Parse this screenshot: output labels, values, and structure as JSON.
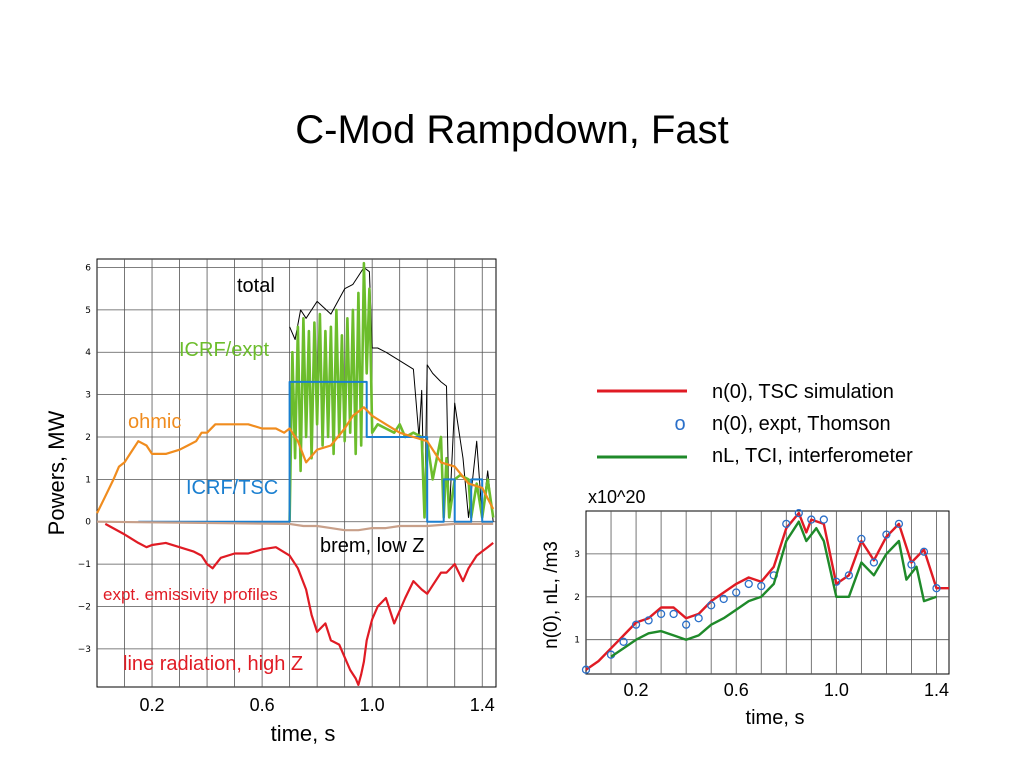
{
  "slide": {
    "title": "C-Mod Rampdown, Fast"
  },
  "colors": {
    "total": "#000000",
    "icrf_expt": "#6cbd2c",
    "ohmic": "#f08c1e",
    "icrf_tsc": "#1a7fd0",
    "brem": "#c8a08a",
    "line": "#e01b24",
    "tsc_sim": "#e01b24",
    "thomson": "#2a6fc9",
    "interferometer": "#1f8a2a"
  },
  "chart_data": [
    {
      "type": "line",
      "xlabel": "time, s",
      "ylabel": "Powers, MW",
      "xlim": [
        0.0,
        1.45
      ],
      "ylim": [
        -3.9,
        6.2
      ],
      "x_ticks": [
        {
          "v": 0.2,
          "label": "0.2"
        },
        {
          "v": 0.6,
          "label": "0.6"
        },
        {
          "v": 1.0,
          "label": "1.0"
        },
        {
          "v": 1.4,
          "label": "1.4"
        }
      ],
      "y_ticks": [
        {
          "v": 6,
          "label": "6"
        },
        {
          "v": 5,
          "label": "5"
        },
        {
          "v": 4,
          "label": "4"
        },
        {
          "v": 3,
          "label": "3"
        },
        {
          "v": 2,
          "label": "2"
        },
        {
          "v": 1,
          "label": "1"
        },
        {
          "v": 0,
          "label": "0"
        },
        {
          "v": -1,
          "label": "−1"
        },
        {
          "v": -2,
          "label": "−2"
        },
        {
          "v": -3,
          "label": "−3"
        }
      ],
      "grid": true,
      "series": [
        {
          "key": "total",
          "color": "#000000",
          "x": [
            0.7,
            0.72,
            0.74,
            0.76,
            0.8,
            0.85,
            0.9,
            0.93,
            0.95,
            0.97,
            0.99,
            1.0,
            1.02,
            1.05,
            1.1,
            1.15,
            1.17,
            1.18,
            1.19,
            1.2,
            1.22,
            1.25,
            1.27,
            1.28,
            1.3,
            1.33,
            1.35,
            1.38,
            1.4,
            1.42,
            1.44
          ],
          "y": [
            4.6,
            4.3,
            5.0,
            4.8,
            5.2,
            4.9,
            5.5,
            5.6,
            5.8,
            6.0,
            5.9,
            4.1,
            4.1,
            4.0,
            3.8,
            3.6,
            2.0,
            3.1,
            0.1,
            3.7,
            3.5,
            3.3,
            3.2,
            0.1,
            2.8,
            1.5,
            0.1,
            1.9,
            0.1,
            1.2,
            0.0
          ]
        },
        {
          "key": "icrf_expt",
          "color": "#6cbd2c",
          "x": [
            0.7,
            0.71,
            0.72,
            0.73,
            0.74,
            0.75,
            0.76,
            0.77,
            0.78,
            0.79,
            0.8,
            0.81,
            0.82,
            0.83,
            0.84,
            0.85,
            0.86,
            0.87,
            0.88,
            0.89,
            0.9,
            0.91,
            0.92,
            0.93,
            0.94,
            0.95,
            0.96,
            0.97,
            0.98,
            0.99,
            1.0,
            1.02,
            1.05,
            1.08,
            1.1,
            1.12,
            1.15,
            1.18,
            1.19,
            1.2,
            1.22,
            1.25,
            1.26,
            1.27,
            1.28,
            1.3,
            1.32,
            1.35,
            1.36,
            1.38,
            1.4,
            1.42,
            1.44
          ],
          "y": [
            0.0,
            4.0,
            1.5,
            4.6,
            1.2,
            4.8,
            2.0,
            4.5,
            1.5,
            4.7,
            2.3,
            4.9,
            1.8,
            4.5,
            2.0,
            4.6,
            1.6,
            5.0,
            2.0,
            4.4,
            1.9,
            4.8,
            2.1,
            5.0,
            1.6,
            5.4,
            1.8,
            6.1,
            3.5,
            5.5,
            2.1,
            2.3,
            2.2,
            2.1,
            2.3,
            2.0,
            2.1,
            2.0,
            0.1,
            1.9,
            1.0,
            2.0,
            0.1,
            1.5,
            0.1,
            1.0,
            1.1,
            1.0,
            0.1,
            0.9,
            0.1,
            1.0,
            0.1
          ]
        },
        {
          "key": "icrf_tsc",
          "color": "#1a7fd0",
          "x": [
            0.15,
            0.7,
            0.7,
            0.98,
            0.98,
            1.2,
            1.2,
            1.26,
            1.26,
            1.3,
            1.3,
            1.36,
            1.36,
            1.4,
            1.4,
            1.44
          ],
          "y": [
            0.0,
            0.0,
            3.3,
            3.3,
            2.0,
            2.0,
            0.0,
            0.0,
            1.0,
            1.0,
            0.0,
            0.0,
            1.0,
            1.0,
            0.0,
            0.0
          ]
        },
        {
          "key": "ohmic",
          "color": "#f08c1e",
          "x": [
            0.0,
            0.03,
            0.06,
            0.08,
            0.1,
            0.12,
            0.15,
            0.18,
            0.2,
            0.25,
            0.3,
            0.33,
            0.36,
            0.38,
            0.4,
            0.43,
            0.45,
            0.48,
            0.5,
            0.55,
            0.6,
            0.65,
            0.68,
            0.7,
            0.73,
            0.76,
            0.8,
            0.85,
            0.9,
            0.93,
            0.95,
            0.97,
            1.0,
            1.05,
            1.1,
            1.15,
            1.2,
            1.25,
            1.3,
            1.35,
            1.4,
            1.44
          ],
          "y": [
            0.2,
            0.6,
            1.0,
            1.3,
            1.4,
            1.6,
            1.9,
            1.8,
            1.6,
            1.6,
            1.7,
            1.8,
            1.9,
            2.1,
            2.1,
            2.3,
            2.3,
            2.3,
            2.3,
            2.3,
            2.2,
            2.2,
            2.1,
            2.2,
            1.9,
            1.4,
            1.7,
            1.8,
            2.2,
            2.5,
            2.6,
            2.7,
            2.5,
            2.3,
            2.1,
            2.0,
            1.9,
            1.4,
            1.3,
            0.9,
            0.8,
            0.3
          ]
        },
        {
          "key": "brem",
          "color": "#c8a08a",
          "x": [
            0.0,
            0.7,
            0.75,
            0.8,
            0.85,
            0.9,
            0.95,
            1.0,
            1.05,
            1.1,
            1.2,
            1.3,
            1.44
          ],
          "y": [
            0.0,
            -0.05,
            -0.1,
            -0.1,
            -0.15,
            -0.2,
            -0.2,
            -0.15,
            -0.15,
            -0.1,
            -0.1,
            -0.05,
            -0.05
          ]
        },
        {
          "key": "line",
          "color": "#e01b24",
          "x": [
            0.03,
            0.1,
            0.15,
            0.18,
            0.2,
            0.25,
            0.3,
            0.35,
            0.38,
            0.4,
            0.42,
            0.45,
            0.5,
            0.55,
            0.6,
            0.65,
            0.7,
            0.73,
            0.76,
            0.78,
            0.8,
            0.83,
            0.85,
            0.88,
            0.9,
            0.92,
            0.94,
            0.95,
            0.96,
            0.97,
            0.98,
            1.0,
            1.02,
            1.05,
            1.08,
            1.1,
            1.12,
            1.15,
            1.18,
            1.2,
            1.22,
            1.25,
            1.27,
            1.3,
            1.33,
            1.35,
            1.38,
            1.4,
            1.42,
            1.44
          ],
          "y": [
            -0.05,
            -0.3,
            -0.5,
            -0.6,
            -0.55,
            -0.5,
            -0.6,
            -0.7,
            -0.8,
            -1.0,
            -1.1,
            -0.85,
            -0.75,
            -0.75,
            -0.65,
            -0.6,
            -0.8,
            -1.1,
            -1.6,
            -2.2,
            -2.6,
            -2.4,
            -2.8,
            -2.9,
            -3.2,
            -3.5,
            -3.7,
            -3.85,
            -3.6,
            -3.3,
            -2.8,
            -2.3,
            -2.0,
            -1.8,
            -2.4,
            -2.1,
            -1.8,
            -1.4,
            -1.6,
            -1.7,
            -1.5,
            -1.2,
            -1.2,
            -1.0,
            -1.4,
            -1.1,
            -0.8,
            -0.7,
            -0.6,
            -0.5
          ]
        }
      ],
      "annotations": {
        "total": "total",
        "icrf_expt": "ICRF/expt",
        "ohmic": "ohmic",
        "icrf_tsc": "ICRF/TSC",
        "brem": "brem, low Z",
        "emissivity": "expt. emissivity profiles",
        "line": "line radiation, high Z"
      }
    },
    {
      "type": "line",
      "xlabel": "time, s",
      "ylabel": "n(0), nL, /m3",
      "scale_label": "x10^20",
      "xlim": [
        0.0,
        1.45
      ],
      "ylim": [
        0.2,
        4.0
      ],
      "x_ticks": [
        {
          "v": 0.2,
          "label": "0.2"
        },
        {
          "v": 0.6,
          "label": "0.6"
        },
        {
          "v": 1.0,
          "label": "1.0"
        },
        {
          "v": 1.4,
          "label": "1.4"
        }
      ],
      "y_ticks": [
        {
          "v": 1,
          "label": "1"
        },
        {
          "v": 2,
          "label": "2"
        },
        {
          "v": 3,
          "label": "3"
        }
      ],
      "grid": true,
      "legend": [
        {
          "key": "tsc_sim",
          "label": "n(0), TSC simulation",
          "style": "line",
          "color": "#e01b24"
        },
        {
          "key": "thomson",
          "label": "n(0), expt, Thomson",
          "style": "marker",
          "marker": "o",
          "color": "#2a6fc9"
        },
        {
          "key": "interferometer",
          "label": "nL, TCI, interferometer",
          "style": "line",
          "color": "#1f8a2a"
        }
      ],
      "series": [
        {
          "key": "tsc_sim",
          "name": "n(0), TSC simulation",
          "color": "#e01b24",
          "x": [
            0.0,
            0.05,
            0.1,
            0.15,
            0.2,
            0.25,
            0.3,
            0.35,
            0.4,
            0.45,
            0.5,
            0.55,
            0.6,
            0.65,
            0.7,
            0.75,
            0.8,
            0.85,
            0.88,
            0.9,
            0.95,
            1.0,
            1.05,
            1.1,
            1.15,
            1.2,
            1.25,
            1.3,
            1.35,
            1.4,
            1.45
          ],
          "y": [
            0.3,
            0.5,
            0.8,
            1.1,
            1.4,
            1.5,
            1.75,
            1.75,
            1.5,
            1.6,
            1.9,
            2.1,
            2.3,
            2.45,
            2.35,
            2.7,
            3.6,
            3.95,
            3.5,
            3.8,
            3.7,
            2.3,
            2.5,
            3.3,
            2.85,
            3.4,
            3.7,
            2.8,
            3.1,
            2.2,
            2.2
          ]
        },
        {
          "key": "thomson",
          "name": "n(0), expt, Thomson",
          "color": "#2a6fc9",
          "x": [
            0.0,
            0.1,
            0.15,
            0.2,
            0.25,
            0.3,
            0.35,
            0.4,
            0.45,
            0.5,
            0.55,
            0.6,
            0.65,
            0.7,
            0.75,
            0.8,
            0.85,
            0.9,
            0.95,
            1.0,
            1.05,
            1.1,
            1.15,
            1.2,
            1.25,
            1.3,
            1.35,
            1.4
          ],
          "y": [
            0.3,
            0.65,
            0.95,
            1.35,
            1.45,
            1.6,
            1.6,
            1.35,
            1.5,
            1.8,
            1.95,
            2.1,
            2.3,
            2.25,
            2.5,
            3.7,
            3.95,
            3.8,
            3.8,
            2.35,
            2.5,
            3.35,
            2.8,
            3.45,
            3.7,
            2.75,
            3.05,
            2.2
          ]
        },
        {
          "key": "interferometer",
          "name": "nL, TCI, interferometer",
          "color": "#1f8a2a",
          "x": [
            0.1,
            0.15,
            0.2,
            0.25,
            0.3,
            0.35,
            0.4,
            0.45,
            0.5,
            0.55,
            0.6,
            0.65,
            0.7,
            0.75,
            0.8,
            0.85,
            0.88,
            0.92,
            0.95,
            1.0,
            1.05,
            1.1,
            1.15,
            1.2,
            1.25,
            1.28,
            1.32,
            1.35,
            1.4
          ],
          "y": [
            0.6,
            0.8,
            1.0,
            1.15,
            1.2,
            1.1,
            1.0,
            1.1,
            1.35,
            1.5,
            1.7,
            1.9,
            2.0,
            2.3,
            3.3,
            3.75,
            3.3,
            3.6,
            3.3,
            2.0,
            2.0,
            2.8,
            2.5,
            3.0,
            3.3,
            2.4,
            2.7,
            1.9,
            2.0
          ]
        }
      ]
    }
  ]
}
